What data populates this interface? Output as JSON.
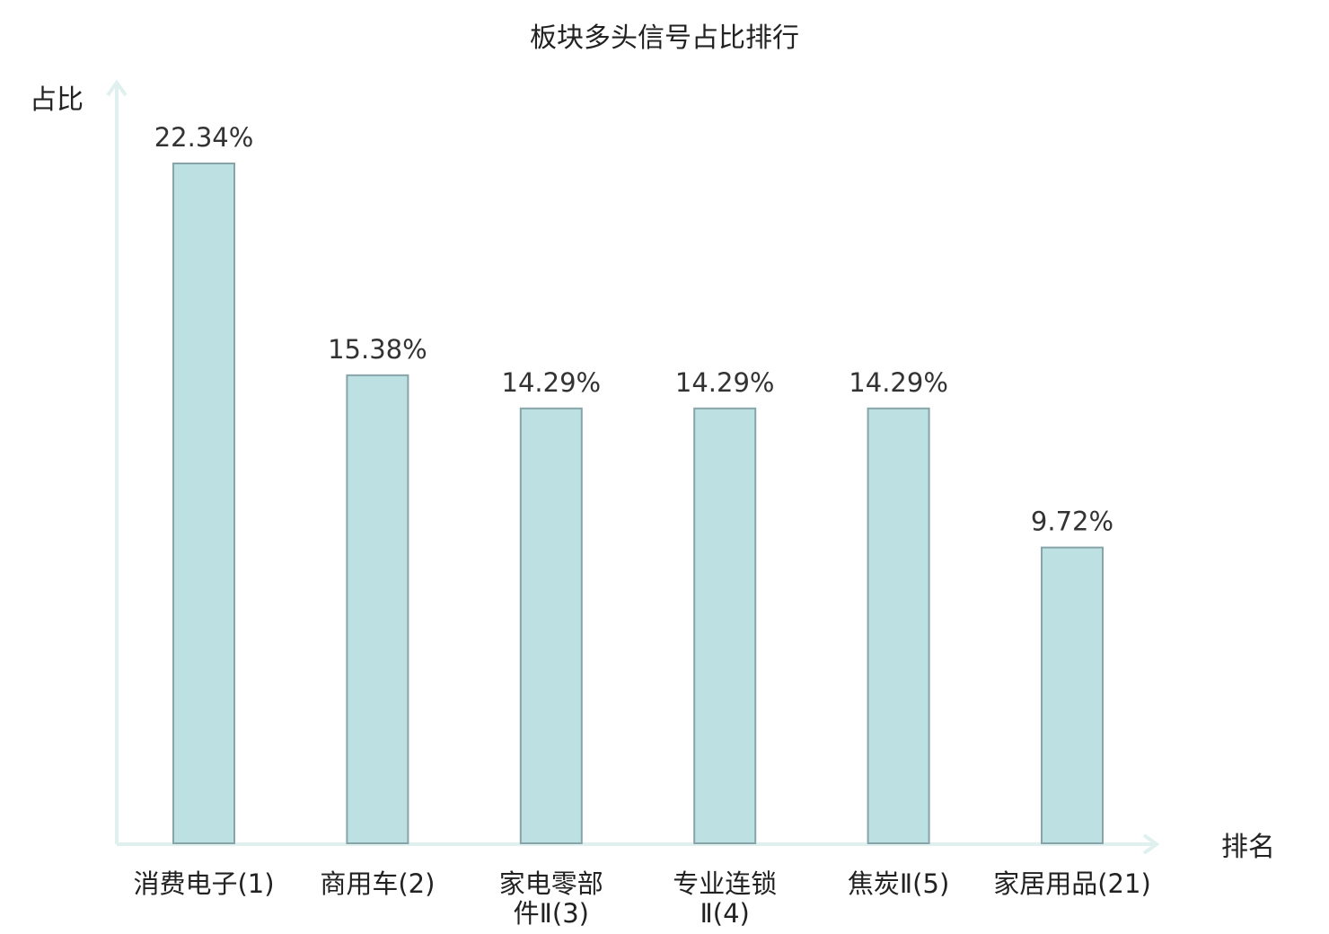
{
  "chart_data": {
    "type": "bar",
    "title": "板块多头信号占比排行",
    "ylabel": "占比",
    "xlabel": "排名",
    "categories": [
      [
        "消费电子(1)"
      ],
      [
        "商用车(2)"
      ],
      [
        "家电零部",
        "件Ⅱ(3)"
      ],
      [
        "专业连锁",
        "Ⅱ(4)"
      ],
      [
        "焦炭Ⅱ(5)"
      ],
      [
        "家居用品(21)"
      ]
    ],
    "values": [
      22.34,
      15.38,
      14.29,
      14.29,
      14.29,
      9.72
    ],
    "value_labels": [
      "22.34%",
      "15.38%",
      "14.29%",
      "14.29%",
      "14.29%",
      "9.72%"
    ],
    "highlight_index": 5,
    "ylim": [
      0,
      25
    ],
    "grid": false,
    "colors": {
      "bar_fill": "#bde0e3",
      "bar_stroke": "#87a5a8",
      "axis": "#dff0ef",
      "highlight_text": "#e02020",
      "text": "#222222"
    }
  }
}
